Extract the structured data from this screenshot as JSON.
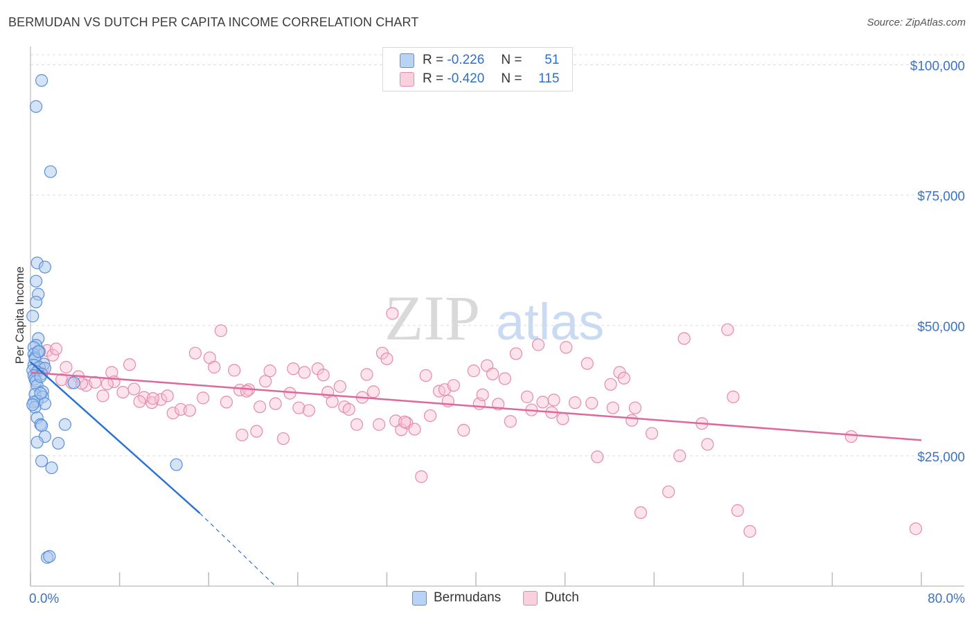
{
  "title": "BERMUDAN VS DUTCH PER CAPITA INCOME CORRELATION CHART",
  "source": "Source: ZipAtlas.com",
  "watermark": {
    "zip": "ZIP",
    "atlas": "atlas"
  },
  "legend": {
    "rows": [
      {
        "r_label": "R =",
        "r_value": "-0.226",
        "n_label": "N =",
        "n_value": "51"
      },
      {
        "r_label": "R =",
        "r_value": "-0.420",
        "n_label": "N =",
        "n_value": "115"
      }
    ]
  },
  "bottom_legend": [
    "Bermudans",
    "Dutch"
  ],
  "colors": {
    "bermudans_fill": "#a9c8f0",
    "bermudans_stroke": "#5b8fd6",
    "bermudans_line": "#2b72d3",
    "dutch_fill": "#f8c2d4",
    "dutch_stroke": "#e58aa9",
    "dutch_line": "#e0679a",
    "tick_text": "#3a72c6",
    "grid": "#dddddd"
  },
  "chart_data": {
    "type": "scatter",
    "title": "BERMUDAN VS DUTCH PER CAPITA INCOME CORRELATION CHART",
    "xlabel": "",
    "ylabel": "Per Capita Income",
    "xlim": [
      0,
      80
    ],
    "ylim": [
      0,
      103000
    ],
    "x_tick_labels": [
      "0.0%",
      "80.0%"
    ],
    "y_ticks": [
      25000,
      50000,
      75000,
      100000
    ],
    "y_tick_labels": [
      "$25,000",
      "$50,000",
      "$75,000",
      "$100,000"
    ],
    "series": [
      {
        "name": "Bermudans",
        "r": -0.226,
        "n": 51,
        "trend": {
          "x1": 0,
          "y1": 43000,
          "x2": 15.2,
          "y2": 14000,
          "dash_to_x": 22,
          "dash_to_y": 0
        },
        "points": [
          [
            1.0,
            97000
          ],
          [
            0.5,
            92000
          ],
          [
            1.8,
            79500
          ],
          [
            0.6,
            62000
          ],
          [
            1.3,
            61200
          ],
          [
            0.5,
            58500
          ],
          [
            0.7,
            56000
          ],
          [
            0.5,
            54500
          ],
          [
            0.2,
            51800
          ],
          [
            0.7,
            47500
          ],
          [
            0.5,
            46200
          ],
          [
            0.3,
            45800
          ],
          [
            0.8,
            45000
          ],
          [
            0.3,
            44500
          ],
          [
            0.4,
            43800
          ],
          [
            0.4,
            43500
          ],
          [
            1.2,
            42600
          ],
          [
            0.3,
            42400
          ],
          [
            0.8,
            42000
          ],
          [
            1.3,
            41800
          ],
          [
            0.2,
            41400
          ],
          [
            0.6,
            41100
          ],
          [
            1.0,
            40700
          ],
          [
            0.3,
            40400
          ],
          [
            0.4,
            39700
          ],
          [
            0.5,
            39300
          ],
          [
            0.6,
            38500
          ],
          [
            1.1,
            37300
          ],
          [
            0.4,
            36800
          ],
          [
            1.1,
            36300
          ],
          [
            0.6,
            35500
          ],
          [
            0.3,
            35300
          ],
          [
            1.3,
            35000
          ],
          [
            0.4,
            34300
          ],
          [
            0.6,
            32300
          ],
          [
            0.9,
            31000
          ],
          [
            1.0,
            30800
          ],
          [
            1.3,
            28700
          ],
          [
            0.6,
            27600
          ],
          [
            2.5,
            27400
          ],
          [
            3.1,
            31000
          ],
          [
            1.0,
            24000
          ],
          [
            1.9,
            22700
          ],
          [
            13.1,
            23300
          ],
          [
            3.9,
            39000
          ],
          [
            1.5,
            5500
          ],
          [
            1.7,
            5700
          ],
          [
            0.9,
            37000
          ],
          [
            0.2,
            34800
          ],
          [
            0.7,
            45000
          ],
          [
            0.9,
            40200
          ]
        ]
      },
      {
        "name": "Dutch",
        "r": -0.42,
        "n": 115,
        "trend": {
          "x1": 0,
          "y1": 41000,
          "x2": 80,
          "y2": 28000
        },
        "points": [
          [
            1.5,
            45200
          ],
          [
            2.0,
            44300
          ],
          [
            3.2,
            42000
          ],
          [
            2.8,
            39600
          ],
          [
            4.3,
            40200
          ],
          [
            5.0,
            38500
          ],
          [
            5.8,
            39100
          ],
          [
            6.5,
            36500
          ],
          [
            7.3,
            41000
          ],
          [
            7.5,
            39200
          ],
          [
            8.3,
            37200
          ],
          [
            8.9,
            42500
          ],
          [
            9.3,
            37800
          ],
          [
            10.2,
            36200
          ],
          [
            10.9,
            35200
          ],
          [
            11.7,
            35800
          ],
          [
            12.3,
            36500
          ],
          [
            12.8,
            33200
          ],
          [
            13.5,
            33900
          ],
          [
            14.3,
            33700
          ],
          [
            14.8,
            44700
          ],
          [
            15.5,
            36100
          ],
          [
            16.1,
            43800
          ],
          [
            16.5,
            42000
          ],
          [
            17.1,
            49000
          ],
          [
            17.6,
            35300
          ],
          [
            18.3,
            41400
          ],
          [
            18.8,
            37600
          ],
          [
            19.0,
            29000
          ],
          [
            19.6,
            37700
          ],
          [
            20.3,
            29700
          ],
          [
            20.6,
            34400
          ],
          [
            21.1,
            39300
          ],
          [
            21.5,
            41300
          ],
          [
            22.0,
            35000
          ],
          [
            22.7,
            28300
          ],
          [
            23.3,
            37000
          ],
          [
            23.6,
            41700
          ],
          [
            24.1,
            34200
          ],
          [
            24.6,
            41000
          ],
          [
            25.0,
            33700
          ],
          [
            25.8,
            41700
          ],
          [
            26.3,
            40500
          ],
          [
            26.7,
            37200
          ],
          [
            27.1,
            35400
          ],
          [
            27.8,
            38300
          ],
          [
            28.2,
            34400
          ],
          [
            28.6,
            33900
          ],
          [
            29.3,
            31000
          ],
          [
            29.8,
            36200
          ],
          [
            30.2,
            40600
          ],
          [
            30.8,
            37300
          ],
          [
            31.3,
            31000
          ],
          [
            31.6,
            44700
          ],
          [
            32.0,
            43600
          ],
          [
            32.5,
            52300
          ],
          [
            32.8,
            31700
          ],
          [
            33.3,
            30000
          ],
          [
            33.8,
            31300
          ],
          [
            34.5,
            30100
          ],
          [
            35.1,
            21000
          ],
          [
            35.5,
            40400
          ],
          [
            35.9,
            32700
          ],
          [
            36.7,
            37400
          ],
          [
            37.2,
            37700
          ],
          [
            37.5,
            35500
          ],
          [
            38.0,
            38500
          ],
          [
            38.9,
            29900
          ],
          [
            39.8,
            41300
          ],
          [
            40.3,
            35000
          ],
          [
            40.6,
            36700
          ],
          [
            41.0,
            42300
          ],
          [
            41.5,
            40700
          ],
          [
            42.0,
            34900
          ],
          [
            42.6,
            39800
          ],
          [
            43.1,
            31600
          ],
          [
            43.6,
            44600
          ],
          [
            44.6,
            36300
          ],
          [
            45.0,
            33800
          ],
          [
            45.6,
            46300
          ],
          [
            46.0,
            35300
          ],
          [
            46.8,
            33300
          ],
          [
            47.8,
            32100
          ],
          [
            48.1,
            45800
          ],
          [
            48.9,
            35200
          ],
          [
            50.0,
            42700
          ],
          [
            50.4,
            35100
          ],
          [
            50.9,
            24800
          ],
          [
            52.1,
            38700
          ],
          [
            52.3,
            34200
          ],
          [
            52.9,
            41000
          ],
          [
            53.3,
            39900
          ],
          [
            54.0,
            31800
          ],
          [
            54.3,
            34200
          ],
          [
            54.8,
            14100
          ],
          [
            55.8,
            29300
          ],
          [
            57.3,
            18100
          ],
          [
            58.3,
            25000
          ],
          [
            58.7,
            47500
          ],
          [
            60.3,
            31200
          ],
          [
            60.8,
            27200
          ],
          [
            62.6,
            49200
          ],
          [
            63.1,
            36300
          ],
          [
            63.5,
            14500
          ],
          [
            64.6,
            10500
          ],
          [
            73.7,
            28700
          ],
          [
            79.5,
            11000
          ],
          [
            1.1,
            41800
          ],
          [
            2.3,
            45500
          ],
          [
            3.7,
            39000
          ],
          [
            4.6,
            38900
          ],
          [
            6.9,
            38800
          ],
          [
            9.8,
            35400
          ],
          [
            11.0,
            36000
          ],
          [
            19.4,
            37400
          ],
          [
            33.6,
            31500
          ],
          [
            47.0,
            35700
          ]
        ]
      }
    ]
  }
}
